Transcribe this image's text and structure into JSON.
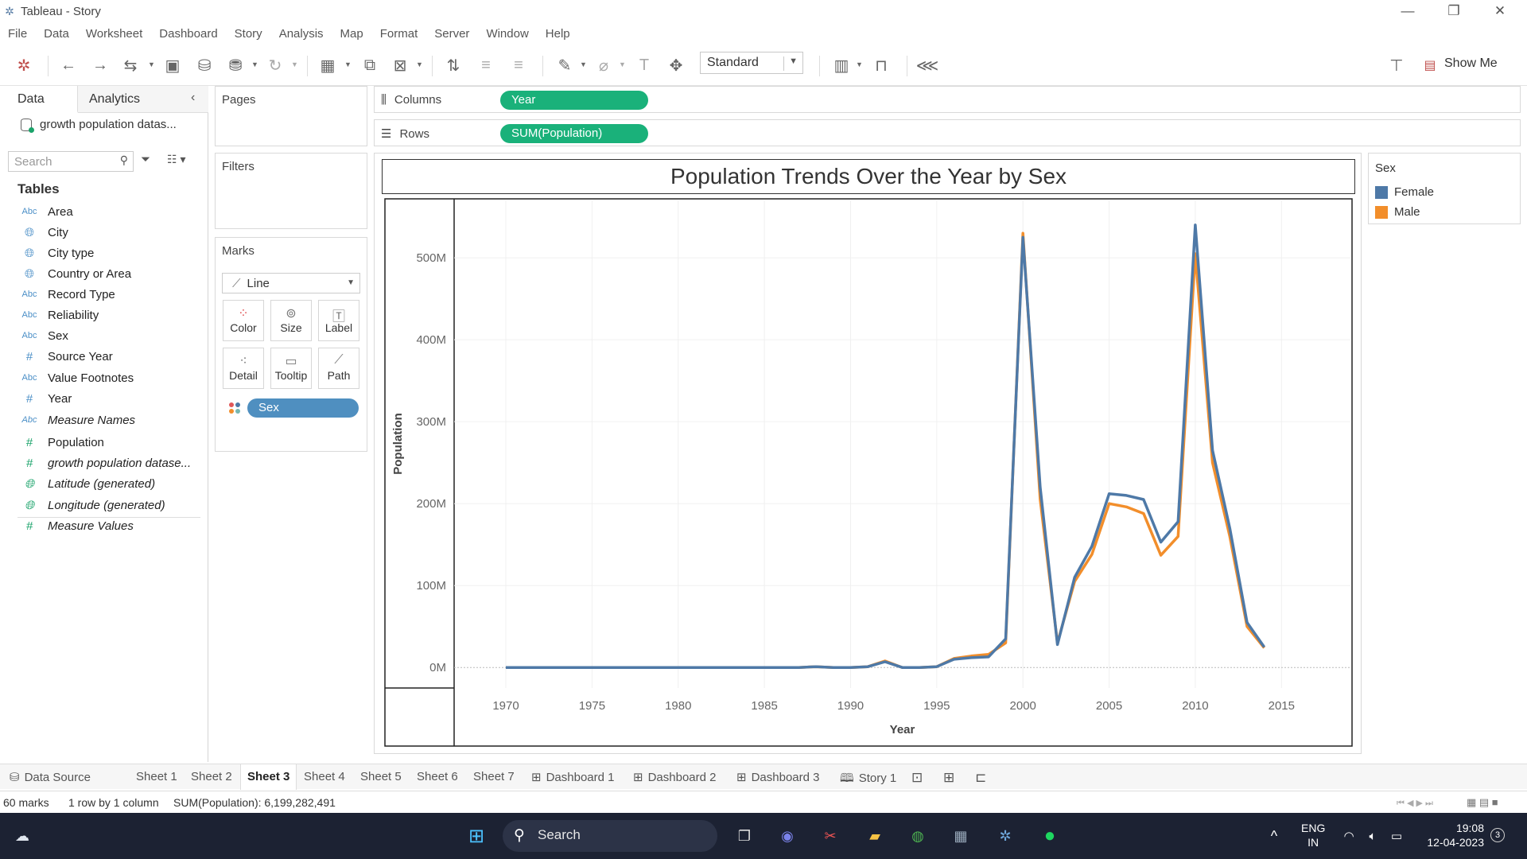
{
  "window": {
    "title": "Tableau - Story"
  },
  "menu": [
    "File",
    "Data",
    "Worksheet",
    "Dashboard",
    "Story",
    "Analysis",
    "Map",
    "Format",
    "Server",
    "Window",
    "Help"
  ],
  "toolbar": {
    "fit_select": "Standard",
    "show_me": "Show Me"
  },
  "data_pane": {
    "tabs": {
      "data": "Data",
      "analytics": "Analytics"
    },
    "datasource": "growth population datas...",
    "search_placeholder": "Search",
    "tables_heading": "Tables",
    "fields": [
      {
        "type": "Abc",
        "name": "Area"
      },
      {
        "type": "geo",
        "name": "City"
      },
      {
        "type": "geo",
        "name": "City type"
      },
      {
        "type": "geo",
        "name": "Country or Area"
      },
      {
        "type": "Abc",
        "name": "Record Type"
      },
      {
        "type": "Abc",
        "name": "Reliability"
      },
      {
        "type": "Abc",
        "name": "Sex"
      },
      {
        "type": "#",
        "name": "Source Year"
      },
      {
        "type": "Abc",
        "name": "Value Footnotes"
      },
      {
        "type": "#",
        "name": "Year"
      },
      {
        "type": "Abc",
        "name": "Measure Names",
        "italic": true
      }
    ],
    "measures": [
      {
        "type": "#",
        "name": "Population"
      },
      {
        "type": "#",
        "name": "growth population datase...",
        "italic": true
      },
      {
        "type": "geo",
        "name": "Latitude (generated)",
        "italic": true
      },
      {
        "type": "geo",
        "name": "Longitude (generated)",
        "italic": true
      },
      {
        "type": "#",
        "name": "Measure Values",
        "italic": true
      }
    ]
  },
  "cards": {
    "pages": "Pages",
    "filters": "Filters",
    "marks": "Marks",
    "mark_type": "Line",
    "mark_buttons": [
      "Color",
      "Size",
      "Label",
      "Detail",
      "Tooltip",
      "Path"
    ],
    "marks_pill": "Sex"
  },
  "shelves": {
    "columns_label": "Columns",
    "columns_pill": "Year",
    "rows_label": "Rows",
    "rows_pill": "SUM(Population)"
  },
  "legend": {
    "title": "Sex",
    "items": [
      {
        "label": "Female",
        "color": "#4e79a7"
      },
      {
        "label": "Male",
        "color": "#f28e2b"
      }
    ]
  },
  "chart_data": {
    "type": "line",
    "title": "Population Trends Over the Year by Sex",
    "xlabel": "Year",
    "ylabel": "Population",
    "xlim": [
      1967,
      2019
    ],
    "ylim": [
      -25,
      570
    ],
    "x_ticks": [
      1970,
      1975,
      1980,
      1985,
      1990,
      1995,
      2000,
      2005,
      2010,
      2015
    ],
    "y_ticks": [
      0,
      100,
      200,
      300,
      400,
      500
    ],
    "y_tick_labels": [
      "0M",
      "100M",
      "200M",
      "300M",
      "400M",
      "500M"
    ],
    "y_unit": "millions",
    "x": [
      1970,
      1971,
      1972,
      1973,
      1974,
      1975,
      1976,
      1977,
      1978,
      1979,
      1980,
      1981,
      1982,
      1983,
      1984,
      1985,
      1986,
      1987,
      1988,
      1989,
      1990,
      1991,
      1992,
      1993,
      1994,
      1995,
      1996,
      1997,
      1998,
      1999,
      2000,
      2001,
      2002,
      2003,
      2004,
      2005,
      2006,
      2007,
      2008,
      2009,
      2010,
      2011,
      2012,
      2013,
      2014
    ],
    "series": [
      {
        "name": "Female",
        "color": "#4e79a7",
        "values": [
          0,
          0,
          0,
          0,
          0,
          0,
          0,
          0,
          0,
          0,
          0,
          0,
          0,
          0,
          0,
          0,
          0,
          0,
          1,
          0,
          0,
          1,
          7,
          0,
          0,
          1,
          10,
          12,
          13,
          35,
          525,
          220,
          28,
          110,
          148,
          212,
          210,
          205,
          153,
          178,
          540,
          265,
          170,
          55,
          25
        ]
      },
      {
        "name": "Male",
        "color": "#f28e2b",
        "values": [
          0,
          0,
          0,
          0,
          0,
          0,
          0,
          0,
          0,
          0,
          0,
          0,
          0,
          0,
          0,
          0,
          0,
          0,
          1,
          0,
          0,
          1,
          8,
          0,
          0,
          1,
          11,
          14,
          16,
          30,
          530,
          205,
          30,
          105,
          138,
          200,
          196,
          188,
          137,
          160,
          505,
          250,
          160,
          50,
          24
        ]
      }
    ]
  },
  "sheet_tabs": [
    "Data Source",
    "Sheet 1",
    "Sheet 2",
    "Sheet 3",
    "Sheet 4",
    "Sheet 5",
    "Sheet 6",
    "Sheet 7",
    "Dashboard 1",
    "Dashboard 2",
    "Dashboard 3",
    "Story 1"
  ],
  "active_tab": "Sheet 3",
  "status": {
    "marks": "60 marks",
    "dims": "1 row by 1 column",
    "sum": "SUM(Population): 6,199,282,491"
  },
  "taskbar": {
    "search": "Search",
    "lang_line1": "ENG",
    "lang_line2": "IN",
    "time": "19:08",
    "date": "12-04-2023",
    "notif_count": "3"
  }
}
